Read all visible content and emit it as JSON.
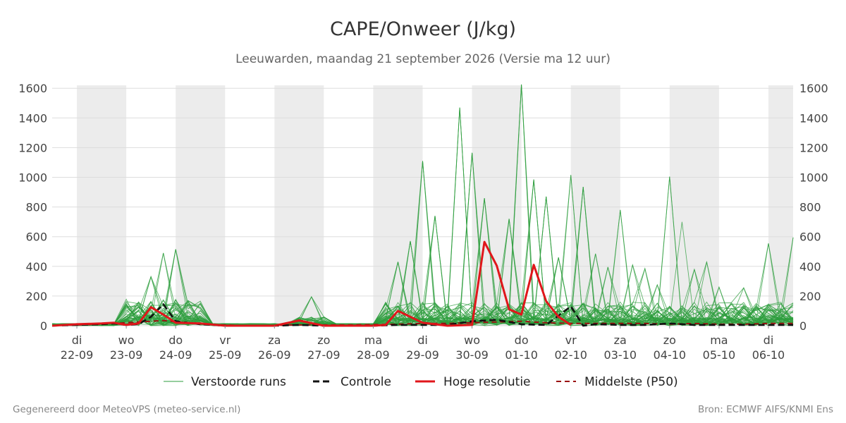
{
  "chart_data": {
    "type": "line",
    "title": "CAPE/Onweer (J/kg)",
    "subtitle": "Leeuwarden, maandag 21 september 2026 (Versie ma 12 uur)",
    "ylim": [
      0,
      1620
    ],
    "y_ticks": [
      0,
      200,
      400,
      600,
      800,
      1000,
      1200,
      1400,
      1600
    ],
    "x_start": "2026-09-21T12:00",
    "x_end": "2026-10-06T12:00",
    "x_ticks": [
      {
        "date": "2026-09-22",
        "day": "di",
        "label": "22-09"
      },
      {
        "date": "2026-09-23",
        "day": "wo",
        "label": "23-09"
      },
      {
        "date": "2026-09-24",
        "day": "do",
        "label": "24-09"
      },
      {
        "date": "2026-09-25",
        "day": "vr",
        "label": "25-09"
      },
      {
        "date": "2026-09-26",
        "day": "za",
        "label": "26-09"
      },
      {
        "date": "2026-09-27",
        "day": "zo",
        "label": "27-09"
      },
      {
        "date": "2026-09-28",
        "day": "ma",
        "label": "28-09"
      },
      {
        "date": "2026-09-29",
        "day": "di",
        "label": "29-09"
      },
      {
        "date": "2026-09-30",
        "day": "wo",
        "label": "30-09"
      },
      {
        "date": "2026-10-01",
        "day": "do",
        "label": "01-10"
      },
      {
        "date": "2026-10-02",
        "day": "vr",
        "label": "02-10"
      },
      {
        "date": "2026-10-03",
        "day": "za",
        "label": "03-10"
      },
      {
        "date": "2026-10-04",
        "day": "zo",
        "label": "04-10"
      },
      {
        "date": "2026-10-05",
        "day": "ma",
        "label": "05-10"
      },
      {
        "date": "2026-10-06",
        "day": "di",
        "label": "06-10"
      }
    ],
    "shaded_days": [
      "2026-09-22",
      "2026-09-24",
      "2026-09-26",
      "2026-09-28",
      "2026-09-30",
      "2026-10-02",
      "2026-10-04",
      "2026-10-06"
    ],
    "grid": true,
    "legend_position": "bottom",
    "colors": {
      "ensemble": "#2e9e3e",
      "controle": "#111111",
      "hoge_resolutie": "#e0161b",
      "p50": "#9b1010",
      "shade": "#ececec",
      "grid": "#dddddd"
    },
    "series": [
      {
        "name": "Controle",
        "style": "dashed",
        "points": [
          [
            "2026-09-21T12:00",
            0
          ],
          [
            "2026-09-22T00:00",
            5
          ],
          [
            "2026-09-22T12:00",
            10
          ],
          [
            "2026-09-22T18:00",
            15
          ],
          [
            "2026-09-23T00:00",
            5
          ],
          [
            "2026-09-23T06:00",
            10
          ],
          [
            "2026-09-23T12:00",
            60
          ],
          [
            "2026-09-23T18:00",
            145
          ],
          [
            "2026-09-24T00:00",
            30
          ],
          [
            "2026-09-24T12:00",
            10
          ],
          [
            "2026-09-25T00:00",
            0
          ],
          [
            "2026-09-26T00:00",
            0
          ],
          [
            "2026-09-26T12:00",
            5
          ],
          [
            "2026-09-27T00:00",
            0
          ],
          [
            "2026-09-28T00:00",
            0
          ],
          [
            "2026-09-28T12:00",
            5
          ],
          [
            "2026-09-29T00:00",
            5
          ],
          [
            "2026-09-29T12:00",
            5
          ],
          [
            "2026-09-30T00:00",
            30
          ],
          [
            "2026-09-30T12:00",
            40
          ],
          [
            "2026-10-01T00:00",
            10
          ],
          [
            "2026-10-01T12:00",
            5
          ],
          [
            "2026-10-02T00:00",
            130
          ],
          [
            "2026-10-02T06:00",
            0
          ],
          [
            "2026-10-02T12:00",
            10
          ],
          [
            "2026-10-03T00:00",
            5
          ],
          [
            "2026-10-03T12:00",
            5
          ],
          [
            "2026-10-04T00:00",
            15
          ],
          [
            "2026-10-04T12:00",
            5
          ],
          [
            "2026-10-05T00:00",
            5
          ],
          [
            "2026-10-05T12:00",
            5
          ],
          [
            "2026-10-06T00:00",
            5
          ],
          [
            "2026-10-06T12:00",
            5
          ]
        ]
      },
      {
        "name": "Hoge resolutie",
        "style": "solid",
        "points": [
          [
            "2026-09-21T12:00",
            0
          ],
          [
            "2026-09-22T00:00",
            10
          ],
          [
            "2026-09-22T12:00",
            15
          ],
          [
            "2026-09-22T18:00",
            20
          ],
          [
            "2026-09-23T00:00",
            5
          ],
          [
            "2026-09-23T06:00",
            15
          ],
          [
            "2026-09-23T12:00",
            125
          ],
          [
            "2026-09-23T18:00",
            75
          ],
          [
            "2026-09-24T00:00",
            20
          ],
          [
            "2026-09-24T12:00",
            15
          ],
          [
            "2026-09-25T00:00",
            0
          ],
          [
            "2026-09-26T00:00",
            0
          ],
          [
            "2026-09-26T12:00",
            35
          ],
          [
            "2026-09-27T00:00",
            0
          ],
          [
            "2026-09-28T00:00",
            0
          ],
          [
            "2026-09-28T06:00",
            5
          ],
          [
            "2026-09-28T12:00",
            100
          ],
          [
            "2026-09-29T00:00",
            20
          ],
          [
            "2026-09-29T12:00",
            0
          ],
          [
            "2026-09-30T00:00",
            5
          ],
          [
            "2026-09-30T06:00",
            565
          ],
          [
            "2026-09-30T12:00",
            405
          ],
          [
            "2026-09-30T18:00",
            110
          ],
          [
            "2026-10-01T00:00",
            75
          ],
          [
            "2026-10-01T06:00",
            410
          ],
          [
            "2026-10-01T12:00",
            165
          ],
          [
            "2026-10-01T18:00",
            60
          ],
          [
            "2026-10-02T00:00",
            5
          ]
        ]
      },
      {
        "name": "Middelste (P50)",
        "style": "dashed",
        "points": [
          [
            "2026-09-21T12:00",
            0
          ],
          [
            "2026-09-22T12:00",
            10
          ],
          [
            "2026-09-23T12:00",
            30
          ],
          [
            "2026-09-23T18:00",
            35
          ],
          [
            "2026-09-24T12:00",
            10
          ],
          [
            "2026-09-25T12:00",
            0
          ],
          [
            "2026-09-26T12:00",
            5
          ],
          [
            "2026-09-27T12:00",
            5
          ],
          [
            "2026-09-28T12:00",
            10
          ],
          [
            "2026-09-29T00:00",
            15
          ],
          [
            "2026-09-29T12:00",
            15
          ],
          [
            "2026-09-30T00:00",
            20
          ],
          [
            "2026-09-30T12:00",
            25
          ],
          [
            "2026-10-01T00:00",
            30
          ],
          [
            "2026-10-01T12:00",
            20
          ],
          [
            "2026-10-02T00:00",
            15
          ],
          [
            "2026-10-02T12:00",
            15
          ],
          [
            "2026-10-03T00:00",
            15
          ],
          [
            "2026-10-03T12:00",
            15
          ],
          [
            "2026-10-04T00:00",
            10
          ],
          [
            "2026-10-04T12:00",
            15
          ],
          [
            "2026-10-05T00:00",
            10
          ],
          [
            "2026-10-05T12:00",
            10
          ],
          [
            "2026-10-06T00:00",
            15
          ],
          [
            "2026-10-06T12:00",
            15
          ]
        ]
      }
    ],
    "ensemble_name": "Verstoorde runs",
    "ensemble_peaks": [
      [
        "2026-09-23T18:00",
        490
      ],
      [
        "2026-09-24T00:00",
        515
      ],
      [
        "2026-09-23T12:00",
        330
      ],
      [
        "2026-09-26T18:00",
        195
      ],
      [
        "2026-09-28T12:00",
        430
      ],
      [
        "2026-09-28T18:00",
        570
      ],
      [
        "2026-09-29T00:00",
        1110
      ],
      [
        "2026-09-29T06:00",
        740
      ],
      [
        "2026-09-29T18:00",
        1470
      ],
      [
        "2026-09-30T00:00",
        1165
      ],
      [
        "2026-09-30T06:00",
        860
      ],
      [
        "2026-09-30T18:00",
        720
      ],
      [
        "2026-10-01T00:00",
        1625
      ],
      [
        "2026-10-01T06:00",
        985
      ],
      [
        "2026-10-01T12:00",
        870
      ],
      [
        "2026-10-01T18:00",
        460
      ],
      [
        "2026-10-02T00:00",
        1015
      ],
      [
        "2026-10-02T06:00",
        935
      ],
      [
        "2026-10-02T12:00",
        485
      ],
      [
        "2026-10-02T18:00",
        395
      ],
      [
        "2026-10-03T00:00",
        780
      ],
      [
        "2026-10-03T06:00",
        410
      ],
      [
        "2026-10-03T12:00",
        385
      ],
      [
        "2026-10-03T18:00",
        275
      ],
      [
        "2026-10-04T00:00",
        1005
      ],
      [
        "2026-10-04T06:00",
        700
      ],
      [
        "2026-10-04T12:00",
        380
      ],
      [
        "2026-10-04T18:00",
        430
      ],
      [
        "2026-10-05T00:00",
        260
      ],
      [
        "2026-10-05T12:00",
        255
      ],
      [
        "2026-10-06T00:00",
        555
      ],
      [
        "2026-10-06T12:00",
        595
      ]
    ],
    "legend": [
      "Verstoorde runs",
      "Controle",
      "Hoge resolutie",
      "Middelste (P50)"
    ]
  },
  "footer": {
    "left": "Gegenereerd door MeteoVPS (meteo-service.nl)",
    "right": "Bron: ECMWF AIFS/KNMI Ens"
  }
}
